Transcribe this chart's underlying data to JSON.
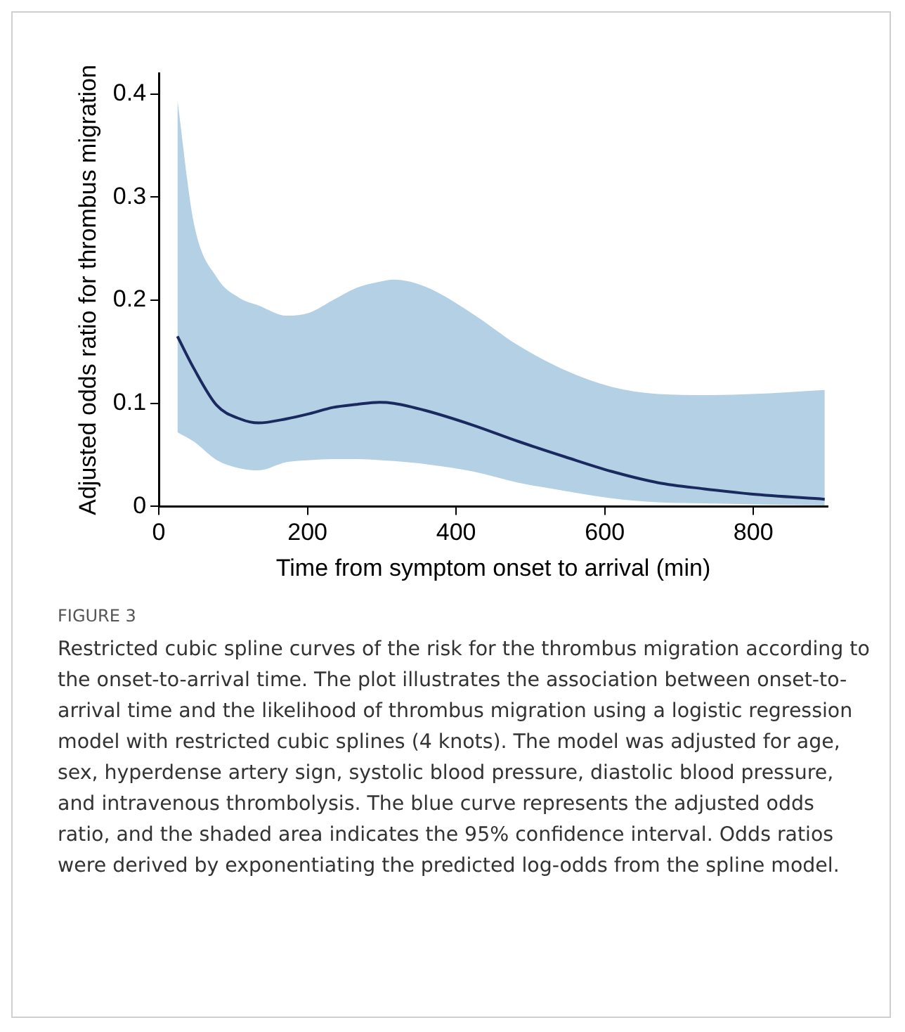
{
  "chart_data": {
    "type": "line",
    "xlabel": "Time from symptom onset to arrival (min)",
    "ylabel": "Adjusted odds ratio for thrombus migration",
    "x": [
      25,
      47,
      78,
      109,
      134,
      172,
      203,
      234,
      266,
      297,
      316,
      359,
      422,
      484,
      547,
      609,
      672,
      734,
      797,
      896
    ],
    "series": [
      {
        "color": "#1a2a5e",
        "values": [
          0.165,
          0.134,
          0.098,
          0.085,
          0.081,
          0.085,
          0.09,
          0.096,
          0.099,
          0.101,
          0.1,
          0.093,
          0.079,
          0.063,
          0.048,
          0.034,
          0.023,
          0.017,
          0.012,
          0.007
        ],
        "upper": [
          0.394,
          0.275,
          0.222,
          0.202,
          0.195,
          0.185,
          0.188,
          0.2,
          0.212,
          0.218,
          0.22,
          0.213,
          0.187,
          0.156,
          0.132,
          0.116,
          0.109,
          0.108,
          0.109,
          0.113
        ],
        "lower": [
          0.072,
          0.063,
          0.045,
          0.037,
          0.035,
          0.043,
          0.045,
          0.046,
          0.046,
          0.045,
          0.044,
          0.041,
          0.034,
          0.023,
          0.015,
          0.008,
          0.004,
          0.003,
          0.002,
          0.001
        ]
      }
    ],
    "xlim": [
      0,
      900
    ],
    "xticks": [
      0,
      200,
      400,
      600,
      800
    ],
    "ylim": [
      0,
      0.42
    ],
    "yticks": [
      0,
      0.1,
      0.2,
      0.3,
      0.4
    ],
    "grid": false,
    "legend": false,
    "marker": "none",
    "line_style": "solid",
    "annotations": [
      "FIGURE 3",
      "Restricted cubic spline curves of the risk for the thrombus migration according to the onset-to-arrival time. The plot illustrates the association between onset-to-arrival time and the likelihood of thrombus migration using a logistic regression model with restricted cubic splines (4 knots). The model was adjusted for age, sex, hyperdense artery sign, systolic blood pressure, diastolic blood pressure, and intravenous thrombolysis. The blue curve represents the adjusted odds ratio, and the shaded area indicates the 95% confidence interval. Odds ratios were derived by exponentiating the predicted log-odds from the spline model."
    ]
  }
}
